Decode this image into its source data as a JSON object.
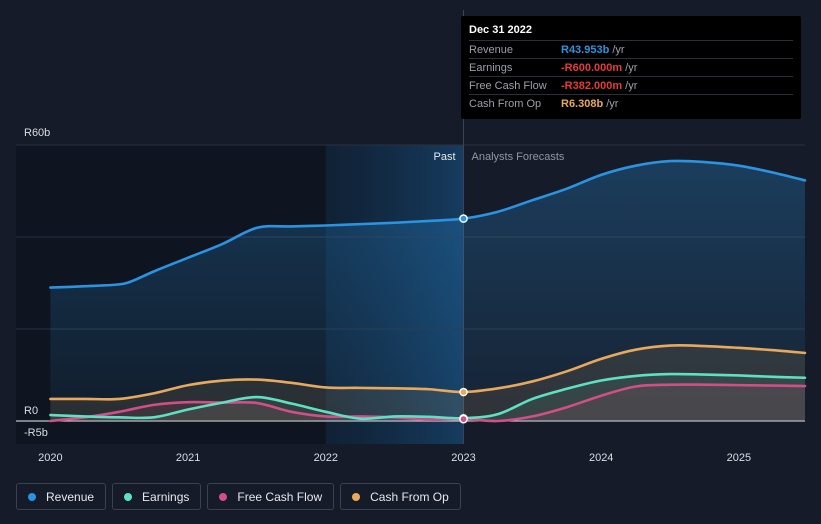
{
  "colors": {
    "revenue": "#2a94e2",
    "earnings": "#5ee0c2",
    "fcf": "#cf4f86",
    "cfo": "#e9a95c",
    "grid": "#2a3140",
    "axis_text": "#dadde2",
    "past_shade": "#0f1520"
  },
  "tooltip": {
    "date": "Dec 31 2022",
    "rows": [
      {
        "label": "Revenue",
        "value": "R43.953b",
        "unit": "/yr",
        "color": "#2a94e2"
      },
      {
        "label": "Earnings",
        "value": "-R600.000m",
        "unit": "/yr",
        "color": "#e23c3c"
      },
      {
        "label": "Free Cash Flow",
        "value": "-R382.000m",
        "unit": "/yr",
        "color": "#e23c3c"
      },
      {
        "label": "Cash From Op",
        "value": "R6.308b",
        "unit": "/yr",
        "color": "#e9a95c"
      }
    ]
  },
  "legend": [
    {
      "label": "Revenue",
      "color": "#2a94e2"
    },
    {
      "label": "Earnings",
      "color": "#5ee0c2"
    },
    {
      "label": "Free Cash Flow",
      "color": "#cf4f86"
    },
    {
      "label": "Cash From Op",
      "color": "#e9a95c"
    }
  ],
  "chart_data": {
    "type": "line",
    "x_ticks": [
      2020,
      2021,
      2022,
      2023,
      2024,
      2025
    ],
    "x_tick_labels": [
      "2020",
      "2021",
      "2022",
      "2023",
      "2024",
      "2025"
    ],
    "xlim": [
      2019.75,
      2025.48
    ],
    "y_tick_labels": [
      "R60b",
      "R0",
      "-R5b"
    ],
    "y_ticks": [
      60,
      0,
      -5
    ],
    "ylim": [
      -5,
      60
    ],
    "gridlines": [
      60,
      40,
      20,
      0
    ],
    "past_label": "Past",
    "forecast_label": "Analysts Forecasts",
    "divider_x": 2023.0,
    "highlight_start": 2022.0,
    "series": [
      {
        "name": "Revenue",
        "key": "revenue",
        "points": [
          [
            2020.0,
            29.0
          ],
          [
            2020.25,
            29.3
          ],
          [
            2020.5,
            29.7
          ],
          [
            2020.6,
            30.5
          ],
          [
            2020.75,
            32.5
          ],
          [
            2021.0,
            35.5
          ],
          [
            2021.25,
            38.5
          ],
          [
            2021.5,
            42.0
          ],
          [
            2021.75,
            42.3
          ],
          [
            2022.0,
            42.5
          ],
          [
            2022.25,
            42.8
          ],
          [
            2022.5,
            43.1
          ],
          [
            2022.75,
            43.5
          ],
          [
            2023.0,
            44.0
          ],
          [
            2023.25,
            45.5
          ],
          [
            2023.5,
            48.0
          ],
          [
            2023.75,
            50.5
          ],
          [
            2024.0,
            53.5
          ],
          [
            2024.25,
            55.5
          ],
          [
            2024.5,
            56.5
          ],
          [
            2024.75,
            56.3
          ],
          [
            2025.0,
            55.5
          ],
          [
            2025.25,
            54.0
          ],
          [
            2025.48,
            52.3
          ]
        ]
      },
      {
        "name": "Earnings",
        "key": "earnings",
        "points": [
          [
            2020.0,
            -1.3
          ],
          [
            2020.25,
            -1.0
          ],
          [
            2020.5,
            -0.8
          ],
          [
            2020.75,
            0.8
          ],
          [
            2021.0,
            2.5
          ],
          [
            2021.25,
            4.0
          ],
          [
            2021.5,
            5.2
          ],
          [
            2021.75,
            3.8
          ],
          [
            2022.0,
            2.0
          ],
          [
            2022.25,
            0.5
          ],
          [
            2022.5,
            -1.0
          ],
          [
            2022.75,
            -0.9
          ],
          [
            2023.0,
            -0.6
          ],
          [
            2023.25,
            1.5
          ],
          [
            2023.5,
            4.8
          ],
          [
            2023.75,
            7.0
          ],
          [
            2024.0,
            8.8
          ],
          [
            2024.25,
            9.8
          ],
          [
            2024.5,
            10.2
          ],
          [
            2024.75,
            10.1
          ],
          [
            2025.0,
            9.9
          ],
          [
            2025.25,
            9.6
          ],
          [
            2025.48,
            9.4
          ]
        ]
      },
      {
        "name": "Free Cash Flow",
        "key": "fcf",
        "points": [
          [
            2020.0,
            0.0
          ],
          [
            2020.25,
            0.8
          ],
          [
            2020.5,
            2.0
          ],
          [
            2020.75,
            3.5
          ],
          [
            2021.0,
            4.1
          ],
          [
            2021.25,
            4.0
          ],
          [
            2021.5,
            3.9
          ],
          [
            2021.75,
            2.0
          ],
          [
            2022.0,
            1.0
          ],
          [
            2022.25,
            1.0
          ],
          [
            2022.5,
            0.8
          ],
          [
            2022.75,
            0.3
          ],
          [
            2023.0,
            -0.4
          ],
          [
            2023.25,
            0.0
          ],
          [
            2023.5,
            1.0
          ],
          [
            2023.75,
            3.0
          ],
          [
            2024.0,
            5.5
          ],
          [
            2024.25,
            7.5
          ],
          [
            2024.5,
            7.9
          ],
          [
            2024.75,
            7.9
          ],
          [
            2025.0,
            7.8
          ],
          [
            2025.25,
            7.7
          ],
          [
            2025.48,
            7.6
          ]
        ]
      },
      {
        "name": "Cash From Op",
        "key": "cfo",
        "points": [
          [
            2020.0,
            4.8
          ],
          [
            2020.25,
            4.8
          ],
          [
            2020.5,
            4.8
          ],
          [
            2020.75,
            6.0
          ],
          [
            2021.0,
            7.8
          ],
          [
            2021.25,
            8.8
          ],
          [
            2021.5,
            9.0
          ],
          [
            2021.75,
            8.3
          ],
          [
            2022.0,
            7.3
          ],
          [
            2022.25,
            7.2
          ],
          [
            2022.5,
            7.1
          ],
          [
            2022.75,
            6.9
          ],
          [
            2023.0,
            6.3
          ],
          [
            2023.25,
            7.1
          ],
          [
            2023.5,
            8.6
          ],
          [
            2023.75,
            10.8
          ],
          [
            2024.0,
            13.5
          ],
          [
            2024.25,
            15.5
          ],
          [
            2024.5,
            16.4
          ],
          [
            2024.75,
            16.3
          ],
          [
            2025.0,
            15.9
          ],
          [
            2025.25,
            15.4
          ],
          [
            2025.48,
            14.8
          ]
        ]
      }
    ]
  }
}
